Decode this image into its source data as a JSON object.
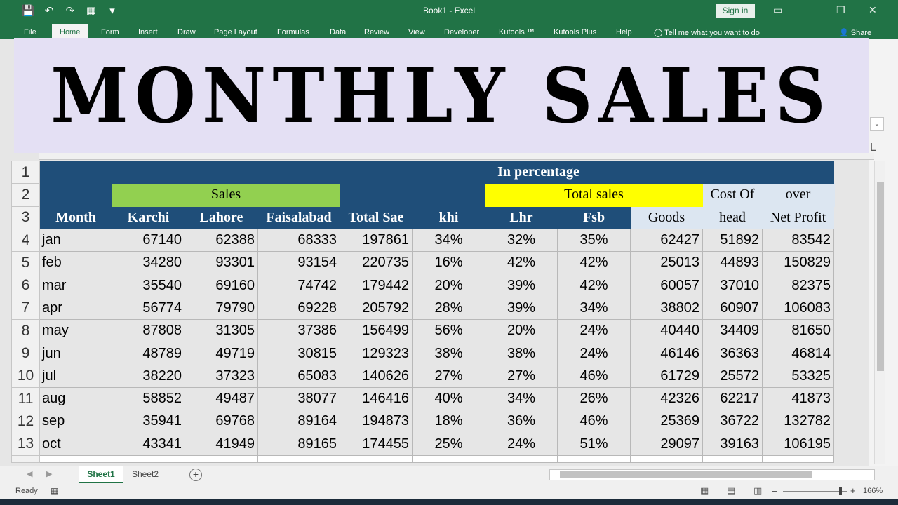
{
  "app": {
    "doc_title": "Book1  -  Excel",
    "sign_in": "Sign in"
  },
  "qat": {
    "save_icon": "💾",
    "undo_icon": "↶",
    "redo_icon": "↷",
    "form_icon": "▦",
    "more_icon": "▾"
  },
  "ribbon": {
    "tabs": [
      "File",
      "Home",
      "Form",
      "Insert",
      "Draw",
      "Page Layout",
      "Formulas",
      "Data",
      "Review",
      "View",
      "Developer",
      "Kutools ™",
      "Kutools Plus",
      "Help"
    ],
    "tell_me": "Tell me what you want to do",
    "share": "Share"
  },
  "banner": {
    "text": "MONTHLY SALES"
  },
  "grid": {
    "row_numbers": [
      "1",
      "2",
      "3",
      "4",
      "5",
      "6",
      "7",
      "8",
      "9",
      "10",
      "11",
      "12",
      "13"
    ],
    "row1_label": "In percentage",
    "row2": {
      "sales": "Sales",
      "total_sales": "Total sales",
      "cost_of": "Cost Of",
      "over": "over"
    },
    "row3": [
      "Month",
      "Karchi",
      "Lahore",
      "Faisalabad",
      "Total Sae",
      "khi",
      "Lhr",
      "Fsb",
      "Goods",
      "head",
      "Net Profit"
    ],
    "rows": [
      [
        "jan",
        "67140",
        "62388",
        "68333",
        "197861",
        "34%",
        "32%",
        "35%",
        "62427",
        "51892",
        "83542"
      ],
      [
        "feb",
        "34280",
        "93301",
        "93154",
        "220735",
        "16%",
        "42%",
        "42%",
        "25013",
        "44893",
        "150829"
      ],
      [
        "mar",
        "35540",
        "69160",
        "74742",
        "179442",
        "20%",
        "39%",
        "42%",
        "60057",
        "37010",
        "82375"
      ],
      [
        "apr",
        "56774",
        "79790",
        "69228",
        "205792",
        "28%",
        "39%",
        "34%",
        "38802",
        "60907",
        "106083"
      ],
      [
        "may",
        "87808",
        "31305",
        "37386",
        "156499",
        "56%",
        "20%",
        "24%",
        "40440",
        "34409",
        "81650"
      ],
      [
        "jun",
        "48789",
        "49719",
        "30815",
        "129323",
        "38%",
        "38%",
        "24%",
        "46146",
        "36363",
        "46814"
      ],
      [
        "jul",
        "38220",
        "37323",
        "65083",
        "140626",
        "27%",
        "27%",
        "46%",
        "61729",
        "25572",
        "53325"
      ],
      [
        "aug",
        "58852",
        "49487",
        "38077",
        "146416",
        "40%",
        "34%",
        "26%",
        "42326",
        "62217",
        "41873"
      ],
      [
        "sep",
        "35941",
        "69768",
        "89164",
        "194873",
        "18%",
        "36%",
        "46%",
        "25369",
        "36722",
        "132782"
      ],
      [
        "oct",
        "43341",
        "41949",
        "89165",
        "174455",
        "25%",
        "24%",
        "51%",
        "29097",
        "39163",
        "106195"
      ]
    ]
  },
  "sheets": {
    "active": "Sheet1",
    "other": "Sheet2"
  },
  "status": {
    "ready": "Ready",
    "zoom": "166%"
  }
}
